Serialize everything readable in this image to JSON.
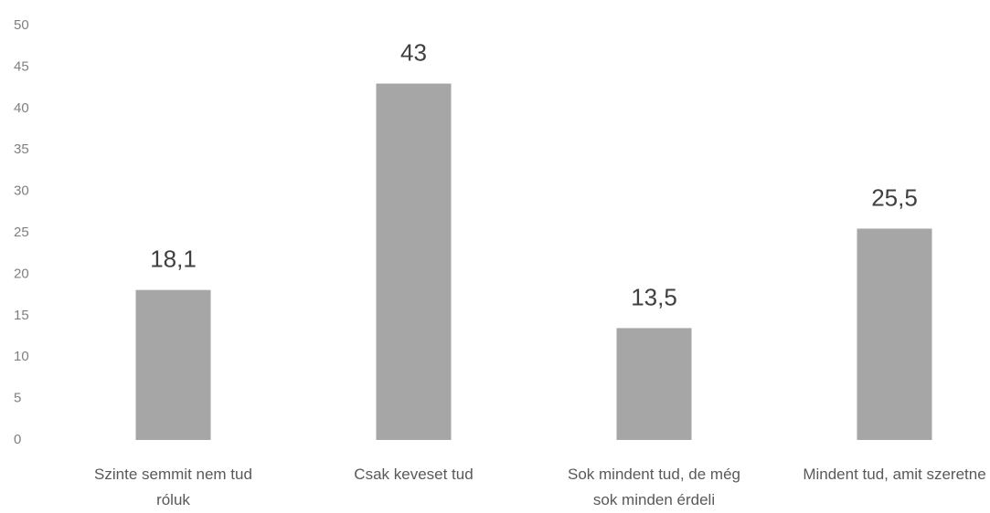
{
  "chart_data": {
    "type": "bar",
    "categories": [
      "Szinte semmit nem tud róluk",
      "Csak keveset tud",
      "Sok mindent tud, de még sok minden érdeli",
      "Mindent tud, amit szeretne"
    ],
    "values": [
      18.1,
      43,
      13.5,
      25.5
    ],
    "value_labels": [
      "18,1",
      "43",
      "13,5",
      "25,5"
    ],
    "color": "#a6a6a6",
    "ylim": [
      0,
      50
    ],
    "yticks": [
      0,
      5,
      10,
      15,
      20,
      25,
      30,
      35,
      40,
      45,
      50
    ],
    "grid": false
  }
}
